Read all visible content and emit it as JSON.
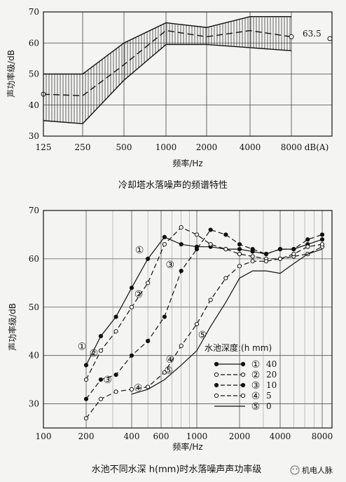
{
  "chart_data": [
    {
      "type": "area",
      "title": "冷却塔水落噪声的频谱特性",
      "xlabel": "频率/Hz",
      "ylabel": "声功率级/dB",
      "x_ticks": [
        "125",
        "250",
        "500",
        "1000",
        "2000",
        "4000",
        "8000",
        "dB(A)"
      ],
      "y_ticks": [
        30,
        40,
        50,
        60,
        70
      ],
      "ylim": [
        30,
        70
      ],
      "grid": true,
      "annotation": "63.5",
      "band_upper": [
        50,
        50,
        60,
        66.5,
        65,
        68.5,
        68.5
      ],
      "band_lower": [
        35,
        34,
        48,
        59.5,
        59.5,
        58.5,
        57.5
      ],
      "series": [
        {
          "values": [
            43.5,
            43,
            53,
            64,
            62,
            64,
            62
          ]
        }
      ],
      "dba_value": 62
    },
    {
      "type": "line",
      "title": "水池不同水深 h(mm)时水落噪声声功率级",
      "xlabel": "频率/Hz",
      "ylabel": "声功率级/dB",
      "x_ticks": [
        "100",
        "200",
        "400",
        "600",
        "1000",
        "2000",
        "4000",
        "8000"
      ],
      "y_ticks": [
        30,
        40,
        50,
        60,
        70
      ],
      "ylim": [
        25,
        70
      ],
      "grid": true,
      "legend_title": "水池深度:(h mm)",
      "series": [
        {
          "marker": "①",
          "name": "40",
          "style": "filled-solid",
          "points": [
            [
              200,
              38
            ],
            [
              250,
              44
            ],
            [
              315,
              48
            ],
            [
              400,
              54
            ],
            [
              500,
              60
            ],
            [
              630,
              64.5
            ],
            [
              800,
              63
            ],
            [
              1000,
              62.5
            ],
            [
              1250,
              62.5
            ],
            [
              1600,
              62
            ],
            [
              2000,
              62
            ],
            [
              2500,
              61.5
            ],
            [
              3150,
              61
            ],
            [
              4000,
              62
            ],
            [
              5000,
              62
            ],
            [
              6300,
              63
            ],
            [
              8000,
              64
            ]
          ]
        },
        {
          "marker": "②",
          "name": "20",
          "style": "open-dashed",
          "points": [
            [
              200,
              35
            ],
            [
              250,
              41
            ],
            [
              315,
              45
            ],
            [
              400,
              50
            ],
            [
              500,
              55
            ],
            [
              630,
              63
            ],
            [
              800,
              66.5
            ],
            [
              1000,
              65
            ],
            [
              1250,
              63
            ],
            [
              1600,
              62
            ],
            [
              2000,
              61
            ],
            [
              2500,
              60.5
            ],
            [
              3150,
              60
            ],
            [
              4000,
              60
            ],
            [
              5000,
              60.5
            ],
            [
              6300,
              61
            ],
            [
              8000,
              62.5
            ]
          ]
        },
        {
          "marker": "③",
          "name": "10",
          "style": "filled-dashed",
          "points": [
            [
              200,
              31
            ],
            [
              250,
              35
            ],
            [
              315,
              36
            ],
            [
              400,
              40
            ],
            [
              500,
              43
            ],
            [
              630,
              48
            ],
            [
              800,
              57.5
            ],
            [
              1000,
              62
            ],
            [
              1250,
              66
            ],
            [
              1600,
              65
            ],
            [
              2000,
              63
            ],
            [
              2500,
              62
            ],
            [
              3150,
              61
            ],
            [
              4000,
              62
            ],
            [
              5000,
              62
            ],
            [
              6300,
              64
            ],
            [
              8000,
              65
            ]
          ]
        },
        {
          "marker": "④",
          "name": "5",
          "style": "open-dashed",
          "points": [
            [
              200,
              27
            ],
            [
              250,
              31
            ],
            [
              315,
              32.5
            ],
            [
              400,
              33
            ],
            [
              500,
              33.5
            ],
            [
              630,
              36.5
            ],
            [
              800,
              42
            ],
            [
              1000,
              46.5
            ],
            [
              1250,
              51.5
            ],
            [
              1600,
              56
            ],
            [
              2000,
              58.5
            ],
            [
              2500,
              59.5
            ],
            [
              3150,
              59.5
            ],
            [
              4000,
              60
            ],
            [
              5000,
              61
            ],
            [
              6300,
              62.5
            ],
            [
              8000,
              63
            ]
          ]
        },
        {
          "marker": "⑤",
          "name": "0",
          "style": "solid",
          "points": [
            [
              400,
              32
            ],
            [
              500,
              33
            ],
            [
              630,
              35
            ],
            [
              800,
              38
            ],
            [
              1000,
              41
            ],
            [
              1250,
              46
            ],
            [
              1600,
              51
            ],
            [
              2000,
              56
            ],
            [
              2500,
              57.5
            ],
            [
              3150,
              57.5
            ],
            [
              4000,
              57
            ],
            [
              5000,
              59
            ],
            [
              6300,
              61
            ],
            [
              8000,
              62
            ]
          ]
        }
      ]
    }
  ],
  "watermark": "机电人脉"
}
